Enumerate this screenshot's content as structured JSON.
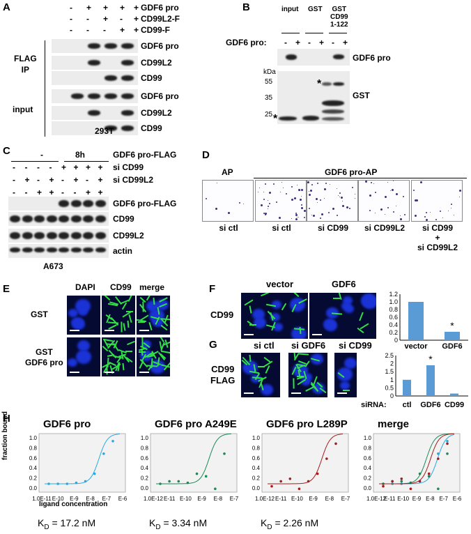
{
  "panels": {
    "A": "A",
    "B": "B",
    "C": "C",
    "D": "D",
    "E": "E",
    "F": "F",
    "G": "G",
    "H": "H"
  },
  "A": {
    "conditions": [
      "GDF6 pro",
      "CD99L2-F",
      "CD99-F"
    ],
    "signs": [
      [
        "-",
        "+",
        "+",
        "+",
        "+"
      ],
      [
        "-",
        "-",
        "+",
        "-",
        "+"
      ],
      [
        "-",
        "-",
        "-",
        "+",
        "+"
      ]
    ],
    "ip_label": "FLAG\nIP",
    "input_label": "input",
    "ip_rows": [
      "GDF6 pro",
      "CD99L2",
      "CD99"
    ],
    "input_rows": [
      "GDF6 pro",
      "CD99L2",
      "CD99"
    ],
    "cell_line": "293T"
  },
  "B": {
    "cols": [
      "input",
      "GST",
      "GST\nCD99\n1-122"
    ],
    "row_label": "GDF6 pro:",
    "signs": [
      "-",
      "+",
      "-",
      "+",
      "-",
      "+"
    ],
    "blot1": "GDF6 pro",
    "blot2": "GST",
    "kda": "kDa",
    "markers": [
      "55",
      "35",
      "25"
    ],
    "star": "*"
  },
  "C": {
    "time": [
      "-",
      "8h"
    ],
    "conditions": [
      "GDF6 pro-FLAG",
      "si CD99",
      "si CD99L2"
    ],
    "signs": [
      [
        "-",
        "-",
        "-",
        "-",
        "+",
        "+",
        "+",
        "+"
      ],
      [
        "-",
        "+",
        "-",
        "+",
        "-",
        "+",
        "-",
        "+"
      ],
      [
        "-",
        "-",
        "+",
        "+",
        "-",
        "-",
        "+",
        "+"
      ]
    ],
    "rows": [
      "GDF6 pro-FLAG",
      "CD99",
      "CD99L2",
      "actin"
    ],
    "cell_line": "A673"
  },
  "D": {
    "ap": "AP",
    "gdf6ap": "GDF6 pro-AP",
    "labels": [
      "si ctl",
      "si ctl",
      "si CD99",
      "si CD99L2",
      "si CD99\n+\nsi CD99L2"
    ]
  },
  "E": {
    "cols": [
      "DAPI",
      "CD99",
      "merge"
    ],
    "rows": [
      "GST",
      "GST\nGDF6 pro"
    ]
  },
  "F": {
    "cols": [
      "vector",
      "GDF6"
    ],
    "row": "CD99",
    "chart_data": {
      "type": "bar",
      "categories": [
        "vector",
        "GDF6"
      ],
      "values": [
        1.0,
        0.22
      ],
      "ylim": [
        0,
        1.2
      ],
      "yticks": [
        "0",
        "0.2",
        "0.4",
        "0.6",
        "0.8",
        "1.0",
        "1.2"
      ],
      "annotation": "*"
    }
  },
  "G": {
    "cols": [
      "si ctl",
      "si GDF6",
      "si CD99"
    ],
    "row": "CD99\nFLAG",
    "chart_data": {
      "type": "bar",
      "categories": [
        "ctl",
        "GDF6",
        "CD99"
      ],
      "values": [
        1.0,
        1.9,
        0.15
      ],
      "ylim": [
        0,
        2.5
      ],
      "yticks": [
        "0",
        "0.5",
        "1",
        "1.5",
        "2",
        "2.5"
      ],
      "xlabel": "siRNA:",
      "annotation": "*"
    }
  },
  "H": {
    "ylabel": "fraction bound",
    "xlabel": "ligand concentration",
    "yticks": [
      "1.0",
      "0.8",
      "0.6",
      "0.4",
      "0.2",
      "0.0"
    ],
    "plots": [
      {
        "title": "GDF6 pro",
        "xticks": [
          "1.0E-11",
          "E-10",
          "E-9",
          "E-8",
          "E-7",
          "E-6"
        ],
        "kd": "K",
        "kdsub": "D",
        "kdval": " = 17.2 nM"
      },
      {
        "title": "GDF6 pro A249E",
        "xticks": [
          "1.0E-12",
          "E-11",
          "E-10",
          "E-9",
          "E-8",
          "E-7"
        ],
        "kd": "K",
        "kdsub": "D",
        "kdval": " = 3.34 nM"
      },
      {
        "title": "GDF6 pro L289P",
        "xticks": [
          "1.0E-12",
          "E-11",
          "E-10",
          "E-9",
          "E-8",
          "E-7"
        ],
        "kd": "K",
        "kdsub": "D",
        "kdval": " = 2.26 nM"
      },
      {
        "title": "merge",
        "xticks": [
          "1.0E-12",
          "E-11",
          "E-10",
          "E-9",
          "E-8",
          "E-7",
          "E-6"
        ],
        "kd": "",
        "kdsub": "",
        "kdval": ""
      }
    ],
    "chart_data": [
      {
        "type": "scatter",
        "series": [
          {
            "values": [
              0,
              0,
              0,
              0.02,
              0.05,
              0.2,
              0.6,
              0.85
            ]
          }
        ],
        "color": "#2aa9e0"
      },
      {
        "type": "scatter",
        "series": [
          {
            "values": [
              0,
              0.05,
              0.05,
              0.02,
              0.2,
              0.15,
              -0.1,
              0.6
            ]
          }
        ],
        "color": "#1b8a55"
      },
      {
        "type": "scatter",
        "series": [
          {
            "values": [
              -0.05,
              0.05,
              0.1,
              -0.1,
              0.05,
              0.2,
              0.5,
              0.8
            ]
          }
        ],
        "color": "#a51c1c"
      }
    ]
  }
}
